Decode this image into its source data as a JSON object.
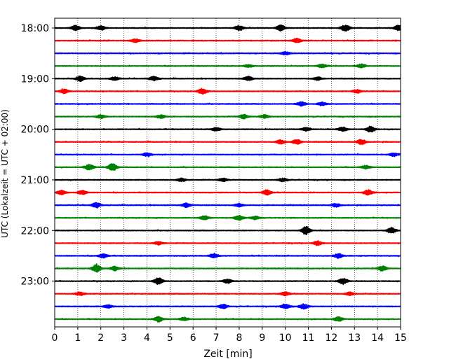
{
  "chart_data": {
    "type": "line",
    "title": "",
    "xlabel": "Zeit  [min]",
    "ylabel": "UTC (Lokalzeit = UTC + 02:00)",
    "xlim": [
      0,
      15
    ],
    "x_ticks": [
      0,
      1,
      2,
      3,
      4,
      5,
      6,
      7,
      8,
      9,
      10,
      11,
      12,
      13,
      14,
      15
    ],
    "x_tick_labels": [
      "0",
      "1",
      "2",
      "3",
      "4",
      "5",
      "6",
      "7",
      "8",
      "9",
      "10",
      "11",
      "12",
      "13",
      "14",
      "15"
    ],
    "y_tick_labels": [
      "18:00",
      "19:00",
      "20:00",
      "21:00",
      "22:00",
      "23:00"
    ],
    "y_tick_rows": [
      0,
      4,
      8,
      12,
      16,
      20
    ],
    "row_interval_minutes": 15,
    "grid": "vertical dotted at each minute",
    "row_colors": [
      "#000000",
      "#ff0000",
      "#0000ff",
      "#008000"
    ],
    "rows": [
      {
        "start": "18:00",
        "events": [
          [
            0.9,
            0.6
          ],
          [
            2.0,
            0.5
          ],
          [
            8.0,
            0.6
          ],
          [
            9.8,
            0.7
          ],
          [
            12.6,
            0.8
          ],
          [
            14.9,
            0.6
          ]
        ]
      },
      {
        "start": "18:15",
        "events": [
          [
            3.5,
            0.4
          ],
          [
            10.5,
            0.5
          ]
        ]
      },
      {
        "start": "18:30",
        "events": [
          [
            10.0,
            0.4
          ]
        ]
      },
      {
        "start": "18:45",
        "events": [
          [
            8.4,
            0.3
          ],
          [
            11.6,
            0.4
          ],
          [
            13.3,
            0.4
          ]
        ]
      },
      {
        "start": "19:00",
        "events": [
          [
            1.1,
            0.6
          ],
          [
            2.6,
            0.4
          ],
          [
            4.3,
            0.5
          ],
          [
            8.4,
            0.5
          ],
          [
            11.4,
            0.4
          ]
        ]
      },
      {
        "start": "19:15",
        "events": [
          [
            0.4,
            0.5
          ],
          [
            6.4,
            0.7
          ],
          [
            13.1,
            0.4
          ]
        ]
      },
      {
        "start": "19:30",
        "events": [
          [
            10.7,
            0.5
          ],
          [
            11.6,
            0.4
          ]
        ]
      },
      {
        "start": "19:45",
        "events": [
          [
            2.0,
            0.4
          ],
          [
            4.6,
            0.4
          ],
          [
            8.2,
            0.5
          ],
          [
            9.1,
            0.4
          ]
        ]
      },
      {
        "start": "20:00",
        "events": [
          [
            7.0,
            0.4
          ],
          [
            10.9,
            0.4
          ],
          [
            12.5,
            0.5
          ],
          [
            13.7,
            0.7
          ]
        ]
      },
      {
        "start": "20:15",
        "events": [
          [
            9.8,
            0.5
          ],
          [
            10.5,
            0.6
          ],
          [
            13.3,
            0.6
          ]
        ]
      },
      {
        "start": "20:30",
        "events": [
          [
            4.0,
            0.4
          ],
          [
            14.7,
            0.4
          ]
        ]
      },
      {
        "start": "20:45",
        "events": [
          [
            1.5,
            0.7
          ],
          [
            2.5,
            0.9
          ],
          [
            13.5,
            0.4
          ]
        ]
      },
      {
        "start": "21:00",
        "events": [
          [
            5.5,
            0.4
          ],
          [
            7.3,
            0.4
          ],
          [
            9.9,
            0.4
          ]
        ]
      },
      {
        "start": "21:15",
        "events": [
          [
            0.3,
            0.5
          ],
          [
            1.2,
            0.5
          ],
          [
            9.2,
            0.6
          ],
          [
            13.6,
            0.6
          ]
        ]
      },
      {
        "start": "21:30",
        "events": [
          [
            1.8,
            0.6
          ],
          [
            5.7,
            0.5
          ],
          [
            8.0,
            0.4
          ],
          [
            12.2,
            0.4
          ]
        ]
      },
      {
        "start": "21:45",
        "events": [
          [
            6.5,
            0.5
          ],
          [
            8.0,
            0.6
          ],
          [
            8.7,
            0.4
          ]
        ]
      },
      {
        "start": "22:00",
        "events": [
          [
            10.9,
            1.0
          ],
          [
            14.6,
            0.7
          ]
        ]
      },
      {
        "start": "22:15",
        "events": [
          [
            4.5,
            0.4
          ],
          [
            11.4,
            0.5
          ]
        ]
      },
      {
        "start": "22:30",
        "events": [
          [
            2.1,
            0.5
          ],
          [
            6.9,
            0.5
          ],
          [
            12.3,
            0.5
          ]
        ]
      },
      {
        "start": "22:45",
        "events": [
          [
            1.8,
            0.9
          ],
          [
            2.6,
            0.5
          ],
          [
            14.2,
            0.6
          ]
        ]
      },
      {
        "start": "23:00",
        "events": [
          [
            4.5,
            0.8
          ],
          [
            7.5,
            0.5
          ],
          [
            12.5,
            0.7
          ]
        ]
      },
      {
        "start": "23:15",
        "events": [
          [
            1.1,
            0.4
          ],
          [
            10.0,
            0.5
          ],
          [
            12.8,
            0.4
          ]
        ]
      },
      {
        "start": "23:30",
        "events": [
          [
            2.3,
            0.4
          ],
          [
            7.3,
            0.5
          ],
          [
            10.0,
            0.6
          ],
          [
            10.8,
            0.6
          ]
        ]
      },
      {
        "start": "23:45",
        "events": [
          [
            4.5,
            0.6
          ],
          [
            5.6,
            0.4
          ],
          [
            12.3,
            0.5
          ]
        ]
      }
    ]
  }
}
